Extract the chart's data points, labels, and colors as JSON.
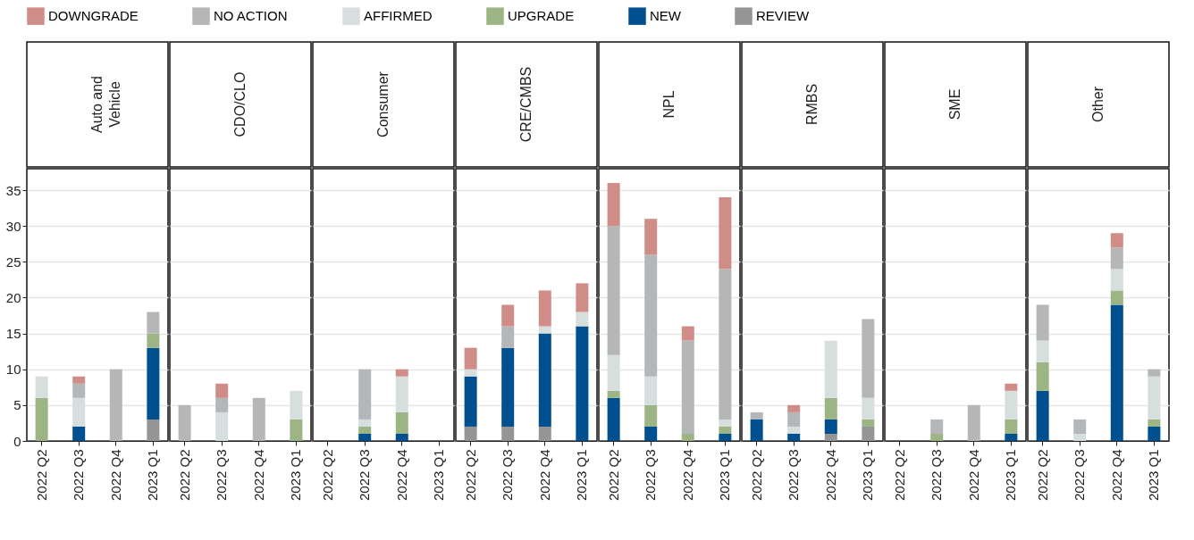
{
  "chart_data": [
    {
      "type": "bar",
      "title": "Auto and Vehicle",
      "categories": [
        "2022 Q2",
        "2022 Q3",
        "2022 Q4",
        "2023 Q1"
      ],
      "stacked": true,
      "ylim": [
        0,
        38
      ],
      "yticks": [
        0,
        5,
        10,
        15,
        20,
        25,
        30,
        35
      ],
      "grid": "y",
      "legend": "top",
      "series": [
        {
          "name": "REVIEW",
          "color": "#959595",
          "values": [
            0,
            0,
            0,
            3
          ]
        },
        {
          "name": "NEW",
          "color": "#00508f",
          "values": [
            0,
            2,
            0,
            10
          ]
        },
        {
          "name": "UPGRADE",
          "color": "#9db584",
          "values": [
            6,
            0,
            0,
            2
          ]
        },
        {
          "name": "AFFIRMED",
          "color": "#d6dfdd",
          "values": [
            3,
            4,
            0,
            0
          ]
        },
        {
          "name": "NO ACTION",
          "color": "#b5b6b8",
          "values": [
            0,
            2,
            10,
            3
          ]
        },
        {
          "name": "DOWNGRADE",
          "color": "#d08c86",
          "values": [
            0,
            1,
            0,
            0
          ]
        }
      ]
    },
    {
      "type": "bar",
      "title": "CDO/CLO",
      "categories": [
        "2022 Q2",
        "2022 Q3",
        "2022 Q4",
        "2023 Q1"
      ],
      "stacked": true,
      "ylim": [
        0,
        38
      ],
      "yticks": [
        0,
        5,
        10,
        15,
        20,
        25,
        30,
        35
      ],
      "grid": "y",
      "tick_labels": "x",
      "series": [
        {
          "name": "REVIEW",
          "color": "#959595",
          "values": [
            0,
            0,
            0,
            0
          ]
        },
        {
          "name": "NEW",
          "color": "#00508f",
          "values": [
            0,
            0,
            0,
            0
          ]
        },
        {
          "name": "UPGRADE",
          "color": "#9db584",
          "values": [
            0,
            0,
            0,
            3
          ]
        },
        {
          "name": "AFFIRMED",
          "color": "#d6dfdd",
          "values": [
            0,
            4,
            0,
            4
          ]
        },
        {
          "name": "NO ACTION",
          "color": "#b5b6b8",
          "values": [
            5,
            2,
            6,
            0
          ]
        },
        {
          "name": "DOWNGRADE",
          "color": "#d08c86",
          "values": [
            0,
            2,
            0,
            0
          ]
        }
      ]
    },
    {
      "type": "bar",
      "title": "Consumer",
      "categories": [
        "2022 Q2",
        "2022 Q3",
        "2022 Q4",
        "2023 Q1"
      ],
      "stacked": true,
      "ylim": [
        0,
        38
      ],
      "yticks": [
        0,
        5,
        10,
        15,
        20,
        25,
        30,
        35
      ],
      "grid": "y",
      "tick_labels": "x",
      "series": [
        {
          "name": "REVIEW",
          "color": "#959595",
          "values": [
            0,
            0,
            0,
            0
          ]
        },
        {
          "name": "NEW",
          "color": "#00508f",
          "values": [
            0,
            1,
            1,
            0
          ]
        },
        {
          "name": "UPGRADE",
          "color": "#9db584",
          "values": [
            0,
            1,
            3,
            0
          ]
        },
        {
          "name": "AFFIRMED",
          "color": "#d6dfdd",
          "values": [
            0,
            1,
            5,
            0
          ]
        },
        {
          "name": "NO ACTION",
          "color": "#b5b6b8",
          "values": [
            0,
            7,
            0,
            0
          ]
        },
        {
          "name": "DOWNGRADE",
          "color": "#d08c86",
          "values": [
            0,
            0,
            1,
            0
          ]
        }
      ]
    },
    {
      "type": "bar",
      "title": "CRE/CMBS",
      "categories": [
        "2022 Q2",
        "2022 Q3",
        "2022 Q4",
        "2023 Q1"
      ],
      "stacked": true,
      "ylim": [
        0,
        38
      ],
      "yticks": [
        0,
        5,
        10,
        15,
        20,
        25,
        30,
        35
      ],
      "grid": "y",
      "tick_labels": "x",
      "series": [
        {
          "name": "REVIEW",
          "color": "#959595",
          "values": [
            2,
            2,
            2,
            0
          ]
        },
        {
          "name": "NEW",
          "color": "#00508f",
          "values": [
            7,
            11,
            13,
            16
          ]
        },
        {
          "name": "UPGRADE",
          "color": "#9db584",
          "values": [
            0,
            0,
            0,
            0
          ]
        },
        {
          "name": "AFFIRMED",
          "color": "#d6dfdd",
          "values": [
            1,
            0,
            1,
            2
          ]
        },
        {
          "name": "NO ACTION",
          "color": "#b5b6b8",
          "values": [
            0,
            3,
            0,
            0
          ]
        },
        {
          "name": "DOWNGRADE",
          "color": "#d08c86",
          "values": [
            3,
            3,
            5,
            4
          ]
        }
      ]
    },
    {
      "type": "bar",
      "title": "NPL",
      "categories": [
        "2022 Q2",
        "2022 Q3",
        "2022 Q4",
        "2023 Q1"
      ],
      "stacked": true,
      "ylim": [
        0,
        38
      ],
      "yticks": [
        0,
        5,
        10,
        15,
        20,
        25,
        30,
        35
      ],
      "grid": "y",
      "tick_labels": "x",
      "series": [
        {
          "name": "REVIEW",
          "color": "#959595",
          "values": [
            0,
            0,
            0,
            0
          ]
        },
        {
          "name": "NEW",
          "color": "#00508f",
          "values": [
            6,
            2,
            0,
            1
          ]
        },
        {
          "name": "UPGRADE",
          "color": "#9db584",
          "values": [
            1,
            3,
            1,
            1
          ]
        },
        {
          "name": "AFFIRMED",
          "color": "#d6dfdd",
          "values": [
            5,
            4,
            0,
            1
          ]
        },
        {
          "name": "NO ACTION",
          "color": "#b5b6b8",
          "values": [
            18,
            17,
            13,
            21
          ]
        },
        {
          "name": "DOWNGRADE",
          "color": "#d08c86",
          "values": [
            6,
            5,
            2,
            10
          ]
        }
      ]
    },
    {
      "type": "bar",
      "title": "RMBS",
      "categories": [
        "2022 Q2",
        "2022 Q3",
        "2022 Q4",
        "2023 Q1"
      ],
      "stacked": true,
      "ylim": [
        0,
        38
      ],
      "yticks": [
        0,
        5,
        10,
        15,
        20,
        25,
        30,
        35
      ],
      "grid": "y",
      "tick_labels": "x",
      "series": [
        {
          "name": "REVIEW",
          "color": "#959595",
          "values": [
            0,
            0,
            1,
            2
          ]
        },
        {
          "name": "NEW",
          "color": "#00508f",
          "values": [
            3,
            1,
            2,
            0
          ]
        },
        {
          "name": "UPGRADE",
          "color": "#9db584",
          "values": [
            0,
            0,
            3,
            1
          ]
        },
        {
          "name": "AFFIRMED",
          "color": "#d6dfdd",
          "values": [
            0,
            1,
            8,
            3
          ]
        },
        {
          "name": "NO ACTION",
          "color": "#b5b6b8",
          "values": [
            1,
            2,
            0,
            11
          ]
        },
        {
          "name": "DOWNGRADE",
          "color": "#d08c86",
          "values": [
            0,
            1,
            0,
            0
          ]
        }
      ]
    },
    {
      "type": "bar",
      "title": "SME",
      "categories": [
        "2022 Q2",
        "2022 Q3",
        "2022 Q4",
        "2023 Q1"
      ],
      "stacked": true,
      "ylim": [
        0,
        38
      ],
      "yticks": [
        0,
        5,
        10,
        15,
        20,
        25,
        30,
        35
      ],
      "grid": "y",
      "tick_labels": "x",
      "series": [
        {
          "name": "REVIEW",
          "color": "#959595",
          "values": [
            0,
            0,
            0,
            0
          ]
        },
        {
          "name": "NEW",
          "color": "#00508f",
          "values": [
            0,
            0,
            0,
            1
          ]
        },
        {
          "name": "UPGRADE",
          "color": "#9db584",
          "values": [
            0,
            1,
            0,
            2
          ]
        },
        {
          "name": "AFFIRMED",
          "color": "#d6dfdd",
          "values": [
            0,
            0,
            0,
            4
          ]
        },
        {
          "name": "NO ACTION",
          "color": "#b5b6b8",
          "values": [
            0,
            2,
            5,
            0
          ]
        },
        {
          "name": "DOWNGRADE",
          "color": "#d08c86",
          "values": [
            0,
            0,
            0,
            1
          ]
        }
      ]
    },
    {
      "type": "bar",
      "title": "Other",
      "categories": [
        "2022 Q2",
        "2022 Q3",
        "2022 Q4",
        "2023 Q1"
      ],
      "stacked": true,
      "ylim": [
        0,
        38
      ],
      "yticks": [
        0,
        5,
        10,
        15,
        20,
        25,
        30,
        35
      ],
      "grid": "y",
      "tick_labels": "x",
      "series": [
        {
          "name": "REVIEW",
          "color": "#959595",
          "values": [
            0,
            0,
            0,
            0
          ]
        },
        {
          "name": "NEW",
          "color": "#00508f",
          "values": [
            7,
            0,
            19,
            2
          ]
        },
        {
          "name": "UPGRADE",
          "color": "#9db584",
          "values": [
            4,
            0,
            2,
            1
          ]
        },
        {
          "name": "AFFIRMED",
          "color": "#d6dfdd",
          "values": [
            3,
            1,
            3,
            6
          ]
        },
        {
          "name": "NO ACTION",
          "color": "#b5b6b8",
          "values": [
            5,
            2,
            3,
            1
          ]
        },
        {
          "name": "DOWNGRADE",
          "color": "#d08c86",
          "values": [
            0,
            0,
            2,
            0
          ]
        }
      ]
    }
  ]
}
